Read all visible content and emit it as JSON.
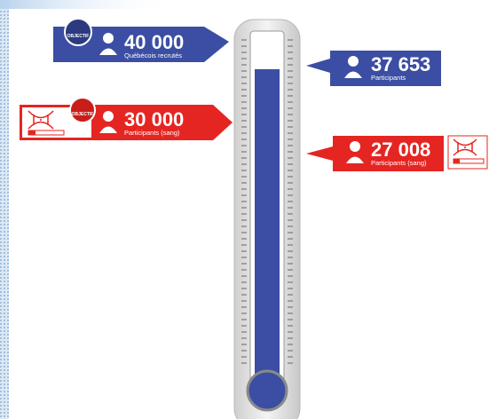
{
  "callouts": [
    {
      "value": "40 000",
      "caption": "Québécois recrutés",
      "badge": "OBJECTIF"
    },
    {
      "value": "37 653",
      "caption": "Participants"
    },
    {
      "value": "30 000",
      "caption": "Participants (sang)",
      "badge": "OBJECTIF"
    },
    {
      "value": "27 008",
      "caption": "Participants (sang)"
    }
  ]
}
